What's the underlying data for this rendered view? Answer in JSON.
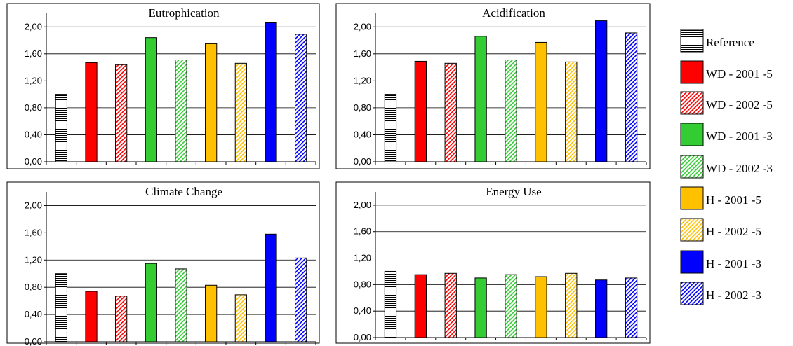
{
  "chart_data": [
    {
      "type": "bar",
      "title": "Eutrophication",
      "categories": [
        "Reference",
        "WD - 2001 -5",
        "WD - 2002 -5",
        "WD - 2001 -3",
        "WD - 2002 -3",
        "H - 2001 -5",
        "H - 2002 -5",
        "H - 2001 -3",
        "H - 2002 -3"
      ],
      "values": [
        1.0,
        1.47,
        1.44,
        1.84,
        1.51,
        1.75,
        1.46,
        2.06,
        1.89
      ],
      "ylim": [
        0,
        2.2
      ],
      "yticks": [
        "0,00",
        "0,40",
        "0,80",
        "1,20",
        "1,60",
        "2,00"
      ],
      "grid": true
    },
    {
      "type": "bar",
      "title": "Acidification",
      "categories": [
        "Reference",
        "WD - 2001 -5",
        "WD - 2002 -5",
        "WD - 2001 -3",
        "WD - 2002 -3",
        "H - 2001 -5",
        "H - 2002 -5",
        "H - 2001 -3",
        "H - 2002 -3"
      ],
      "values": [
        1.0,
        1.49,
        1.46,
        1.86,
        1.51,
        1.77,
        1.48,
        2.09,
        1.91
      ],
      "ylim": [
        0,
        2.2
      ],
      "yticks": [
        "0,00",
        "0,40",
        "0,80",
        "1,20",
        "1,60",
        "2,00"
      ],
      "grid": true
    },
    {
      "type": "bar",
      "title": "Climate Change",
      "categories": [
        "Reference",
        "WD - 2001 -5",
        "WD - 2002 -5",
        "WD - 2001 -3",
        "WD - 2002 -3",
        "H - 2001 -5",
        "H - 2002 -5",
        "H - 2001 -3",
        "H - 2002 -3"
      ],
      "values": [
        1.0,
        0.74,
        0.67,
        1.15,
        1.07,
        0.83,
        0.69,
        1.58,
        1.23
      ],
      "ylim": [
        0,
        2.2
      ],
      "yticks": [
        "0,00",
        "0,40",
        "0,80",
        "1,20",
        "1,60",
        "2,00"
      ],
      "grid": true
    },
    {
      "type": "bar",
      "title": "Energy Use",
      "categories": [
        "Reference",
        "WD - 2001 -5",
        "WD - 2002 -5",
        "WD - 2001 -3",
        "WD - 2002 -3",
        "H - 2001 -5",
        "H - 2002 -5",
        "H - 2001 -3",
        "H - 2002 -3"
      ],
      "values": [
        1.0,
        0.95,
        0.97,
        0.9,
        0.95,
        0.92,
        0.97,
        0.87,
        0.9
      ],
      "ylim": [
        0,
        2.2
      ],
      "yticks": [
        "0,00",
        "0,40",
        "0,80",
        "1,20",
        "1,60",
        "2,00"
      ],
      "grid": true
    }
  ],
  "legend": {
    "placement": "right",
    "items": [
      {
        "label": "Reference",
        "color": "#ffffff",
        "pattern": "horizontal-lines"
      },
      {
        "label": "WD - 2001 -5",
        "color": "#ff0000",
        "pattern": "solid"
      },
      {
        "label": "WD - 2002 -5",
        "color": "#ff0000",
        "pattern": "diagonal-hatch"
      },
      {
        "label": "WD - 2001 -3",
        "color": "#33cc33",
        "pattern": "solid"
      },
      {
        "label": "WD - 2002 -3",
        "color": "#33cc33",
        "pattern": "diagonal-hatch"
      },
      {
        "label": "H - 2001 -5",
        "color": "#ffc000",
        "pattern": "solid"
      },
      {
        "label": "H - 2002 -5",
        "color": "#ffc000",
        "pattern": "diagonal-hatch"
      },
      {
        "label": "H - 2001 -3",
        "color": "#0000ff",
        "pattern": "solid"
      },
      {
        "label": "H - 2002 -3",
        "color": "#0000ff",
        "pattern": "diagonal-hatch"
      }
    ]
  }
}
